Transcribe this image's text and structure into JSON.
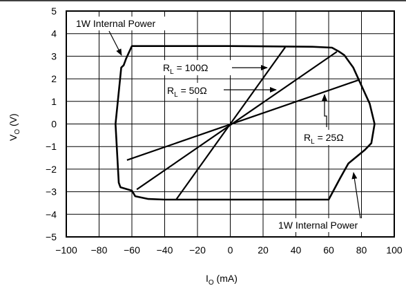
{
  "chart_data": {
    "type": "line",
    "xlabel": {
      "main": "I",
      "sub": "O",
      "unit": " (mA)"
    },
    "ylabel": {
      "main": "V",
      "sub": "O",
      "unit": " (V)"
    },
    "xlim": [
      -100,
      100
    ],
    "ylim": [
      -5,
      5
    ],
    "x_ticks": [
      "−100",
      "−80",
      "−60",
      "−40",
      "−20",
      "0",
      "20",
      "40",
      "60",
      "80",
      "100"
    ],
    "y_ticks": [
      "5",
      "4",
      "3",
      "2",
      "1",
      "0",
      "−1",
      "−2",
      "−3",
      "−4",
      "−5"
    ],
    "grid": true,
    "series": [
      {
        "name": "1W Internal Power",
        "role": "boundary",
        "points": [
          [
            -60,
            3.45
          ],
          [
            -63.5,
            2.9
          ],
          [
            -65,
            2.6
          ],
          [
            -66.5,
            2.5
          ],
          [
            -70,
            0
          ],
          [
            -68,
            -2.6
          ],
          [
            -67,
            -2.8
          ],
          [
            -60,
            -2.95
          ],
          [
            -58,
            -3.2
          ],
          [
            -50,
            -3.32
          ],
          [
            -40,
            -3.35
          ],
          [
            0,
            -3.35
          ],
          [
            60,
            -3.35
          ],
          [
            67,
            -2.4
          ],
          [
            72,
            -1.75
          ],
          [
            82,
            -1.15
          ],
          [
            86,
            -0.85
          ],
          [
            88,
            0
          ],
          [
            85,
            0.9
          ],
          [
            75,
            2.5
          ],
          [
            69.5,
            3.05
          ],
          [
            66.5,
            3.2
          ],
          [
            62,
            3.38
          ],
          [
            50,
            3.42
          ],
          [
            0,
            3.45
          ],
          [
            -60,
            3.45
          ]
        ]
      },
      {
        "name": "R_L = 100Ω",
        "role": "load_line",
        "points": [
          [
            -33,
            -3.35
          ],
          [
            33.5,
            3.4
          ]
        ]
      },
      {
        "name": "R_L = 50Ω",
        "role": "load_line",
        "points": [
          [
            -57,
            -2.9
          ],
          [
            65,
            3.2
          ]
        ]
      },
      {
        "name": "R_L = 25Ω",
        "role": "load_line",
        "points": [
          [
            -63,
            -1.6
          ],
          [
            78.5,
            1.95
          ]
        ]
      }
    ],
    "annotations": {
      "power_top": "1W Internal Power",
      "power_bottom": "1W Internal Power",
      "rl100": {
        "prefix": "R",
        "sub": "L",
        "value": " = 100Ω"
      },
      "rl50": {
        "prefix": "R",
        "sub": "L",
        "value": " = 50Ω"
      },
      "rl25": {
        "prefix": "R",
        "sub": "L",
        "value": " = 25Ω"
      }
    }
  }
}
